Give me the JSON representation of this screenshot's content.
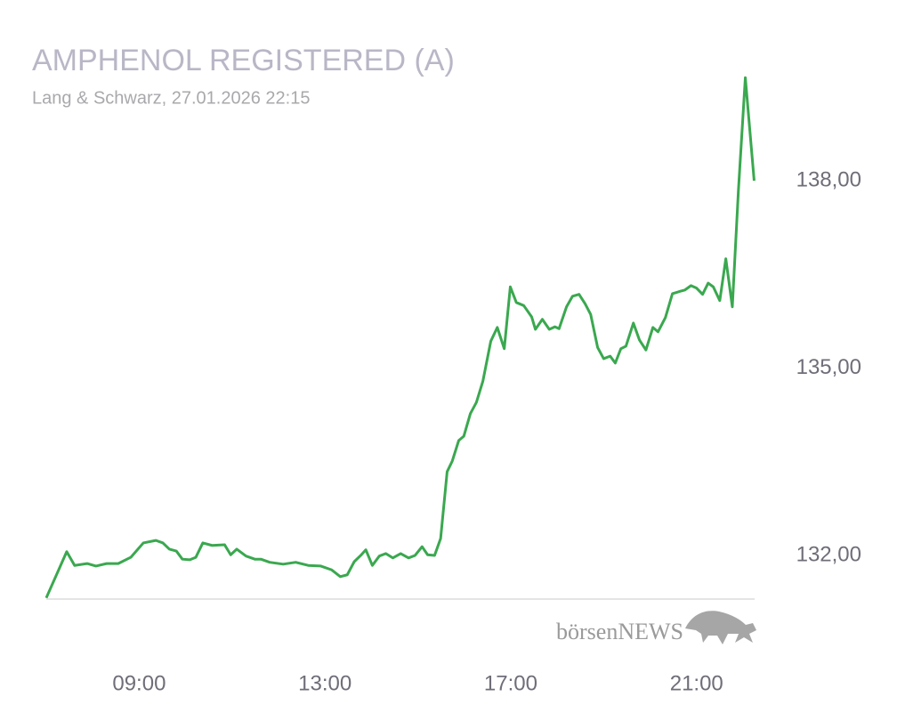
{
  "chart_data": {
    "type": "line",
    "title": "AMPHENOL REGISTERED (A)",
    "subtitle": "Lang & Schwarz, 27.01.2026 22:15",
    "watermark": "börsenNEWS",
    "color": "#3aa84f",
    "grid": false,
    "xlim": [
      7,
      22.25
    ],
    "xticks": [
      {
        "value": 9,
        "label": "09:00"
      },
      {
        "value": 13,
        "label": "13:00"
      },
      {
        "value": 17,
        "label": "17:00"
      },
      {
        "value": 21,
        "label": "21:00"
      }
    ],
    "ylim": [
      131.3,
      139.7
    ],
    "yticks": [
      {
        "value": 132,
        "label": "132,00"
      },
      {
        "value": 135,
        "label": "135,00"
      },
      {
        "value": 138,
        "label": "138,00"
      }
    ],
    "x": [
      7.0,
      7.44,
      7.61,
      7.88,
      8.07,
      8.3,
      8.55,
      8.82,
      9.09,
      9.36,
      9.51,
      9.65,
      9.8,
      9.93,
      10.09,
      10.22,
      10.37,
      10.57,
      10.84,
      10.97,
      11.1,
      11.3,
      11.49,
      11.62,
      11.81,
      12.1,
      12.37,
      12.64,
      12.91,
      13.14,
      13.33,
      13.48,
      13.63,
      13.77,
      13.88,
      14.02,
      14.17,
      14.31,
      14.46,
      14.63,
      14.8,
      14.94,
      15.09,
      15.21,
      15.36,
      15.49,
      15.63,
      15.74,
      15.88,
      15.99,
      16.13,
      16.26,
      16.4,
      16.57,
      16.71,
      16.86,
      16.99,
      17.12,
      17.28,
      17.45,
      17.53,
      17.68,
      17.83,
      17.95,
      18.04,
      18.2,
      18.33,
      18.47,
      18.6,
      18.72,
      18.87,
      19.0,
      19.14,
      19.25,
      19.37,
      19.48,
      19.64,
      19.77,
      19.91,
      20.06,
      20.17,
      20.33,
      20.48,
      20.65,
      20.75,
      20.88,
      21.0,
      21.13,
      21.25,
      21.36,
      21.5,
      21.63,
      21.77,
      21.9,
      22.05,
      22.24
    ],
    "values": [
      131.32,
      132.06,
      131.84,
      131.87,
      131.83,
      131.87,
      131.87,
      131.97,
      132.2,
      132.24,
      132.2,
      132.1,
      132.07,
      131.94,
      131.93,
      131.97,
      132.2,
      132.16,
      132.17,
      132.01,
      132.1,
      131.99,
      131.94,
      131.94,
      131.89,
      131.86,
      131.89,
      131.84,
      131.83,
      131.77,
      131.66,
      131.69,
      131.9,
      132.0,
      132.09,
      131.84,
      131.99,
      132.03,
      131.96,
      132.03,
      131.96,
      132.0,
      132.14,
      132.01,
      132.0,
      132.27,
      133.34,
      133.51,
      133.84,
      133.91,
      134.27,
      134.45,
      134.79,
      135.43,
      135.65,
      135.31,
      136.3,
      136.05,
      136.0,
      135.82,
      135.62,
      135.78,
      135.62,
      135.66,
      135.63,
      135.98,
      136.15,
      136.18,
      136.03,
      135.86,
      135.33,
      135.15,
      135.19,
      135.08,
      135.31,
      135.35,
      135.72,
      135.45,
      135.29,
      135.65,
      135.58,
      135.81,
      136.19,
      136.23,
      136.25,
      136.32,
      136.28,
      136.18,
      136.36,
      136.3,
      136.08,
      136.75,
      135.98,
      137.83,
      139.65,
      138.0
    ]
  }
}
